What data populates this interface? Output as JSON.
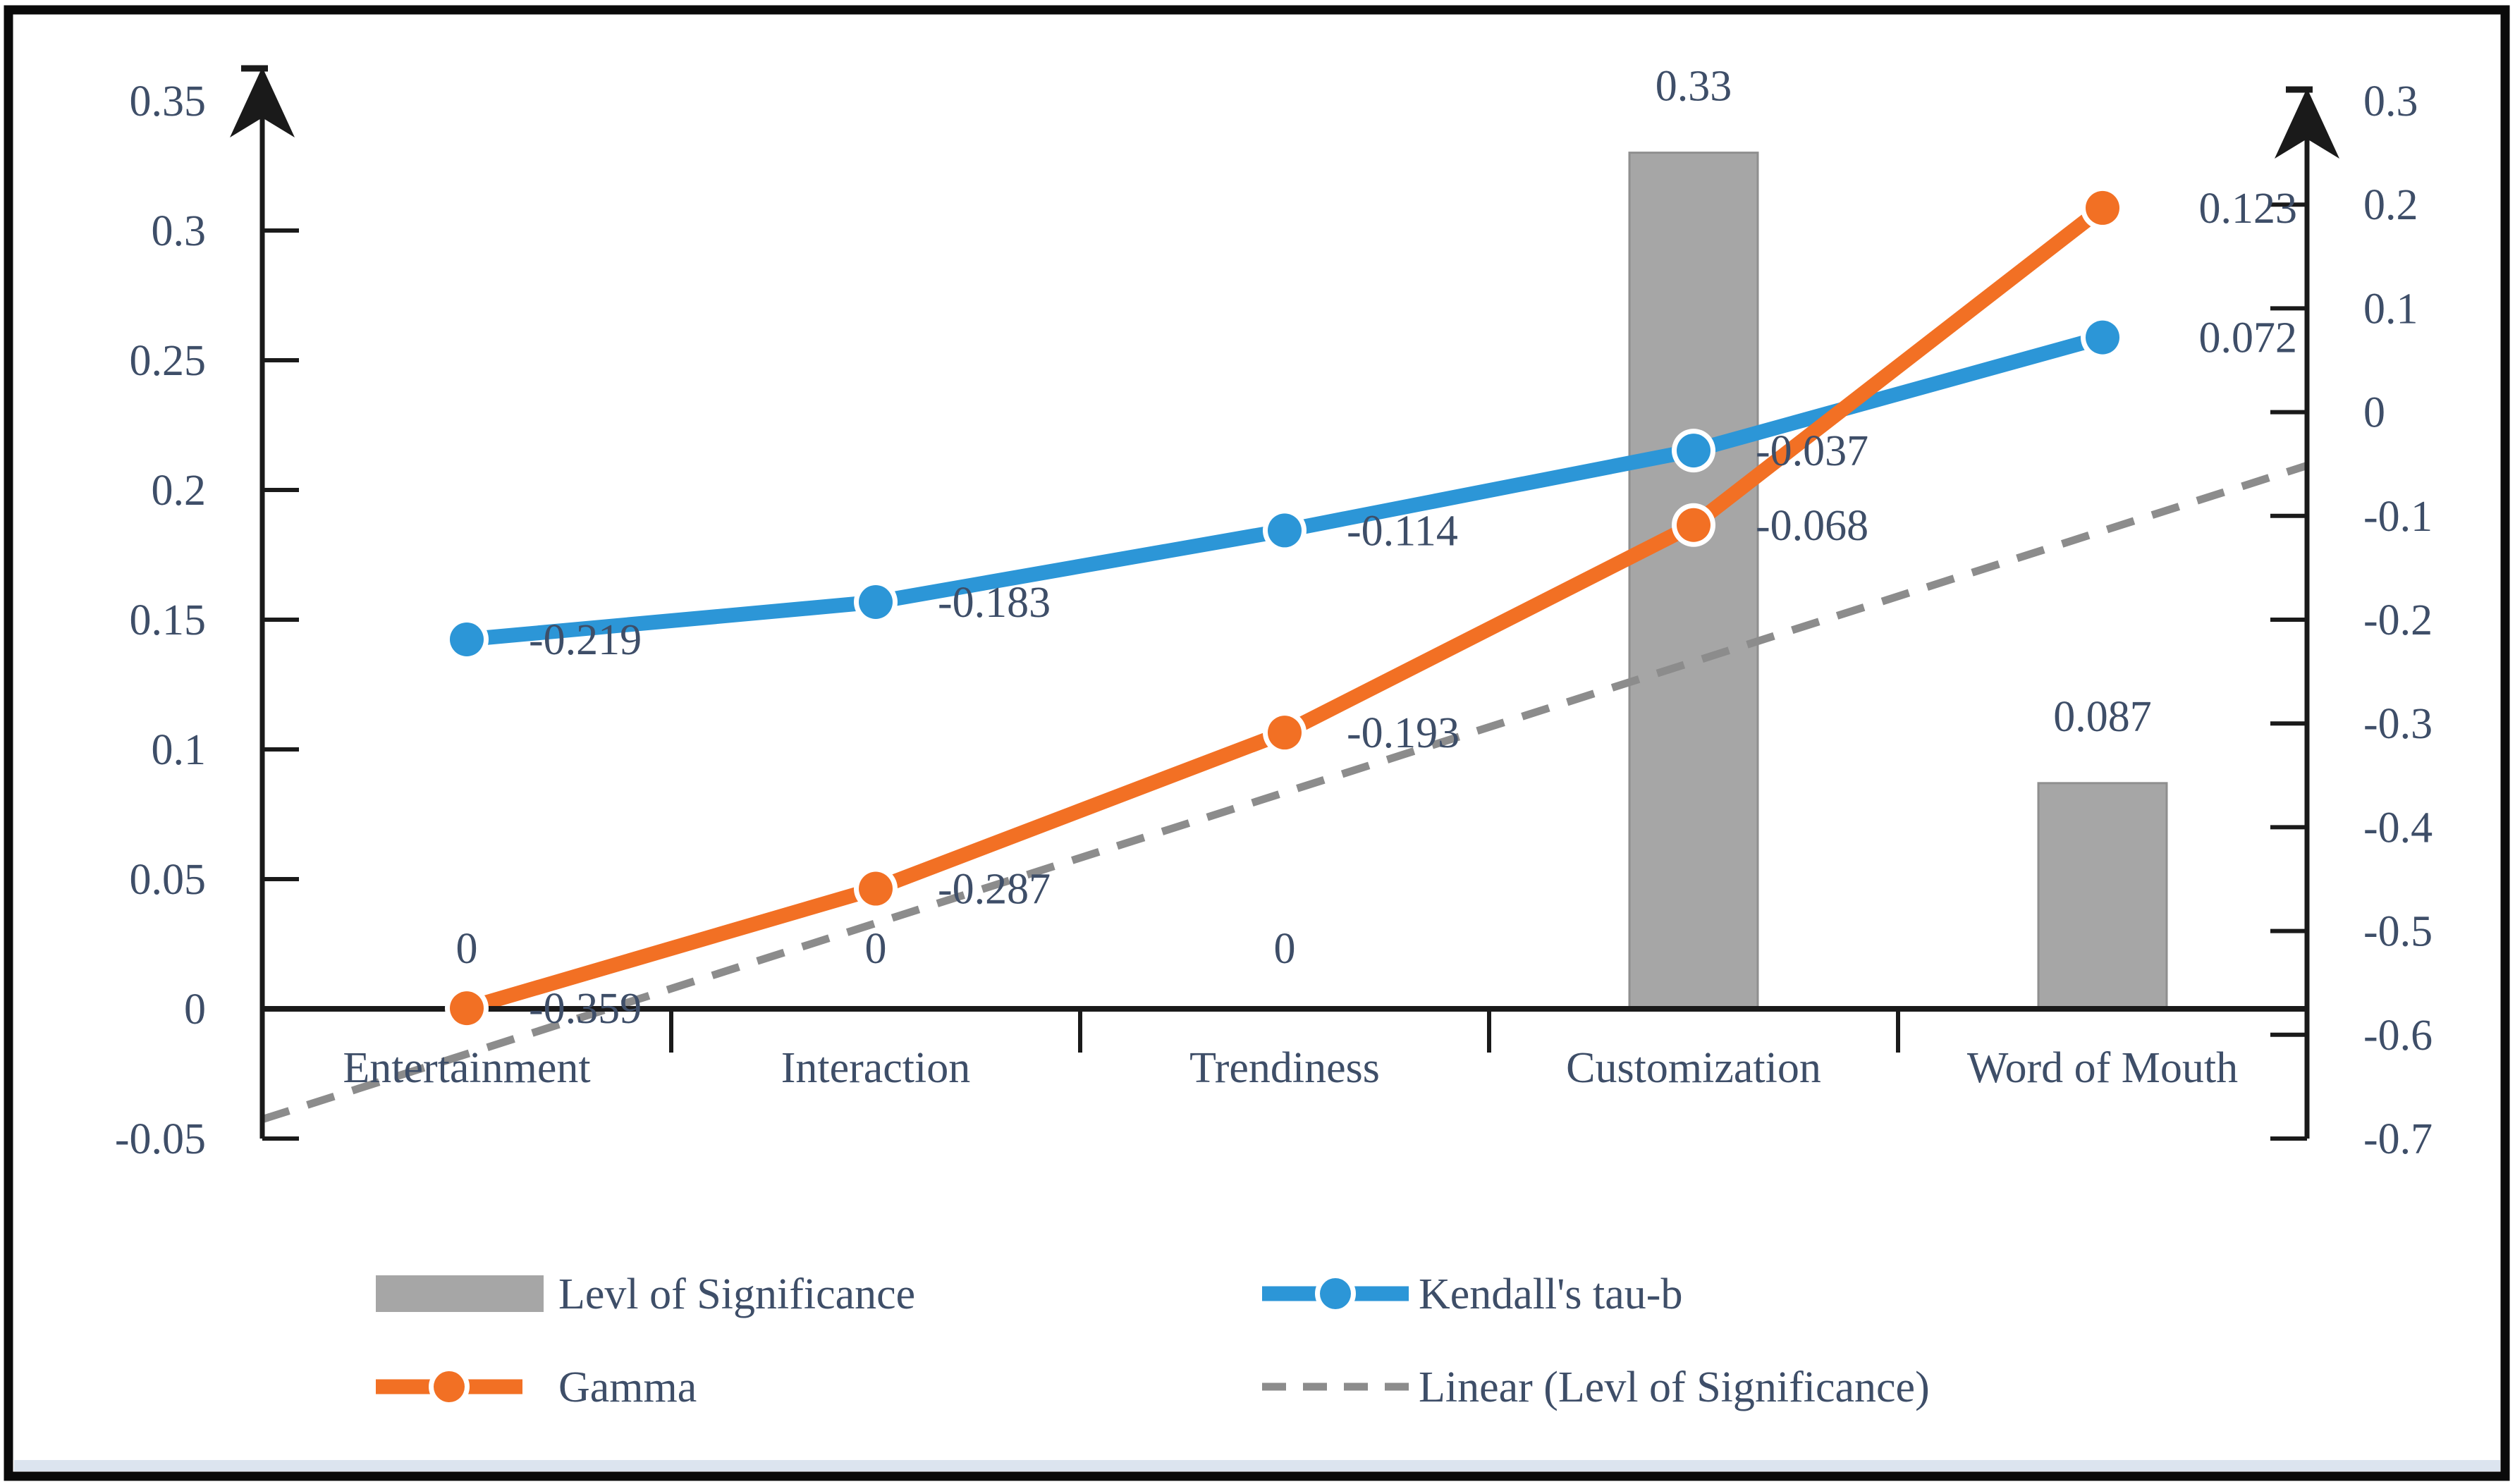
{
  "style": {
    "frame_color": "#0a0a0a",
    "background": "#ffffff",
    "bottom_strip_color": "#dce4ef",
    "text_color": "#3e4e68",
    "axis_color": "#1a1a1a",
    "bar_color": "#a6a6a6",
    "bar_border_color": "#8f8f8f",
    "kendall_color": "#2c96d7",
    "gamma_color": "#f27024",
    "trendline_color": "#8c8c8c"
  },
  "chart_data": {
    "type": "combo",
    "subtypes": [
      "bar",
      "line",
      "line",
      "trendline"
    ],
    "categories": [
      "Entertainment",
      "Interaction",
      "Trendiness",
      "Customization",
      "Word of Mouth"
    ],
    "series": [
      {
        "name": "Levl of Significance",
        "type": "bar",
        "axis": "left",
        "values": [
          0,
          0,
          0,
          0.33,
          0.087
        ],
        "data_labels": [
          "0",
          "0",
          "0",
          "0.33",
          "0.087"
        ],
        "color": "#a6a6a6"
      },
      {
        "name": "Kendall's tau-b",
        "type": "line",
        "axis": "right",
        "values": [
          -0.219,
          -0.183,
          -0.114,
          -0.037,
          0.072
        ],
        "data_labels": [
          "-0.219",
          "-0.183",
          "-0.114",
          "-0.037",
          "0.072"
        ],
        "color": "#2c96d7"
      },
      {
        "name": "Gamma",
        "type": "line",
        "axis": "right",
        "values": [
          -0.359,
          -0.287,
          -0.193,
          -0.068,
          0.123
        ],
        "data_labels": [
          "-0.359",
          "-0.287",
          "-0.193",
          "-0.068",
          "0.123"
        ],
        "color": "#f27024"
      },
      {
        "name": "Linear (Levl of Significance)",
        "type": "trendline",
        "axis": "left",
        "of_series": "Levl of Significance",
        "style": "dashed",
        "color": "#8c8c8c"
      }
    ],
    "left_axis": {
      "min": -0.05,
      "max": 0.35,
      "step": 0.05,
      "tick_labels": [
        "0.35",
        "0.3",
        "0.25",
        "0.2",
        "0.15",
        "0.1",
        "0.05",
        "0",
        "-0.05"
      ],
      "arrow": true
    },
    "right_axis": {
      "min": -0.7,
      "max": 0.3,
      "step": 0.1,
      "tick_labels": [
        "0.3",
        "0.2",
        "0.1",
        "0",
        "-0.1",
        "-0.2",
        "-0.3",
        "-0.4",
        "-0.5",
        "-0.6",
        "-0.7"
      ],
      "arrow": true
    },
    "grid": false,
    "legend_position": "bottom",
    "legend": [
      {
        "label": "Levl of Significance",
        "marker": "bar-swatch",
        "color": "#a6a6a6"
      },
      {
        "label": "Kendall's tau-b",
        "marker": "line-dot",
        "color": "#2c96d7"
      },
      {
        "label": "Gamma",
        "marker": "line-dot",
        "color": "#f27024"
      },
      {
        "label": "Linear (Levl of Significance)",
        "marker": "dashed-line",
        "color": "#8c8c8c"
      }
    ]
  }
}
